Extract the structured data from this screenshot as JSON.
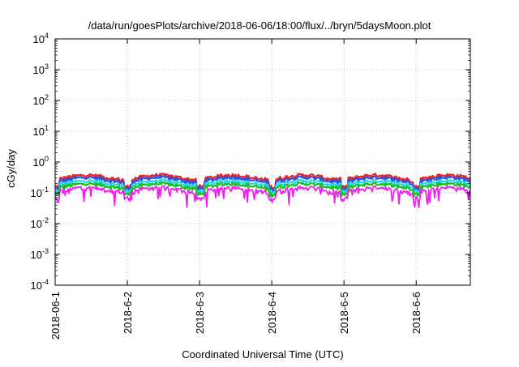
{
  "chart_data": {
    "type": "line",
    "title": "/data/run/goesPlots/archive/2018-06-06/18:00/flux/../bryn/5daysMoon.plot",
    "xlabel": "Coordinated Universal Time (UTC)",
    "ylabel": "cGy/day",
    "yscale": "log",
    "ylim": [
      0.0001,
      10000
    ],
    "xlim": [
      "2018-06-01",
      "2018-06-06T18:00"
    ],
    "grid": true,
    "y_ticks": [
      {
        "base": "10",
        "exp": "-4",
        "value": 0.0001
      },
      {
        "base": "10",
        "exp": "-3",
        "value": 0.001
      },
      {
        "base": "10",
        "exp": "-2",
        "value": 0.01
      },
      {
        "base": "10",
        "exp": "-1",
        "value": 0.1
      },
      {
        "base": "10",
        "exp": "0",
        "value": 1
      },
      {
        "base": "10",
        "exp": "1",
        "value": 10
      },
      {
        "base": "10",
        "exp": "2",
        "value": 100
      },
      {
        "base": "10",
        "exp": "3",
        "value": 1000
      },
      {
        "base": "10",
        "exp": "4",
        "value": 10000
      }
    ],
    "x_ticks": [
      {
        "label": "2018-06-1",
        "day": 0
      },
      {
        "label": "2018-6-2",
        "day": 1
      },
      {
        "label": "2018-6-3",
        "day": 2
      },
      {
        "label": "2018-6-4",
        "day": 3
      },
      {
        "label": "2018-6-5",
        "day": 4
      },
      {
        "label": "2018-6-6",
        "day": 5
      }
    ],
    "series": [
      {
        "color": "#ee2222",
        "level": 0.32,
        "noise": 0.18
      },
      {
        "color": "#2255ee",
        "level": 0.27,
        "noise": 0.16
      },
      {
        "color": "#22dddd",
        "level": 0.21,
        "noise": 0.1
      },
      {
        "color": "#22bb22",
        "level": 0.17,
        "noise": 0.08
      },
      {
        "color": "#ee22ee",
        "level": 0.13,
        "noise": 0.1
      }
    ]
  }
}
